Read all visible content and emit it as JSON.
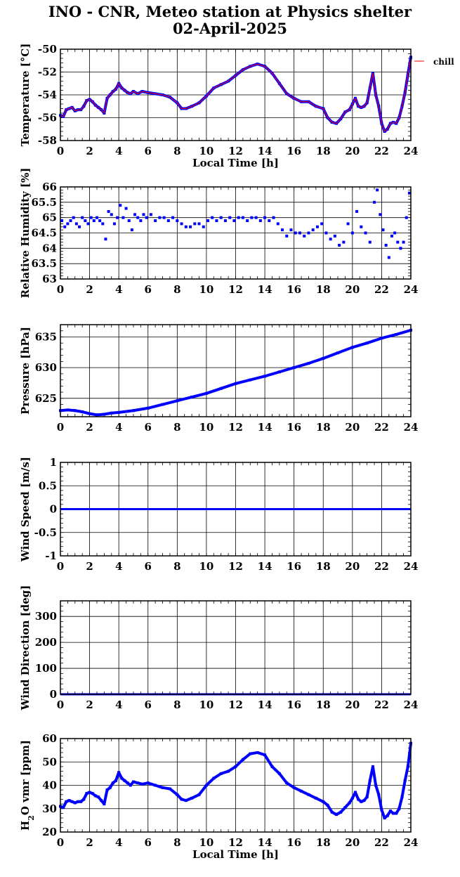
{
  "title_line1": "INO - CNR, Meteo station at Physics shelter",
  "title_line2": "02-April-2025",
  "colors": {
    "series": "#0000ff",
    "overlay": "#ff0000"
  },
  "chart_data": [
    {
      "type": "scatter",
      "ylabel": "Temperature [°C]",
      "xlabel": "Local Time [h]",
      "xlim": [
        0,
        24
      ],
      "xticks": [
        0,
        2,
        4,
        6,
        8,
        10,
        12,
        14,
        16,
        18,
        20,
        22,
        24
      ],
      "ylim": [
        -58,
        -50
      ],
      "yticks": [
        -58,
        -56,
        -54,
        -52,
        -50
      ],
      "ytick_labels": [
        "-58",
        "-56",
        "-54",
        "-52",
        "-50"
      ],
      "legend": {
        "label": "chill",
        "placement": "right"
      },
      "x": [
        0,
        0.2,
        0.4,
        0.6,
        0.8,
        1.0,
        1.2,
        1.4,
        1.6,
        1.8,
        2.0,
        2.2,
        2.4,
        2.6,
        2.8,
        3.0,
        3.2,
        3.4,
        3.6,
        3.8,
        4.0,
        4.2,
        4.4,
        4.6,
        4.8,
        5.0,
        5.3,
        5.6,
        6.0,
        6.5,
        7.0,
        7.5,
        8.0,
        8.3,
        8.6,
        9.0,
        9.5,
        10.0,
        10.5,
        11.0,
        11.5,
        12.0,
        12.5,
        13.0,
        13.5,
        14.0,
        14.5,
        15.0,
        15.5,
        16.0,
        16.5,
        17.0,
        17.5,
        18.0,
        18.3,
        18.6,
        18.9,
        19.2,
        19.5,
        19.8,
        20.0,
        20.2,
        20.4,
        20.6,
        20.8,
        21.0,
        21.2,
        21.4,
        21.6,
        21.8,
        22.0,
        22.2,
        22.4,
        22.6,
        22.8,
        23.0,
        23.2,
        23.4,
        23.6,
        23.8,
        24.0
      ],
      "y": [
        -55.8,
        -55.9,
        -55.3,
        -55.2,
        -55.1,
        -55.4,
        -55.3,
        -55.3,
        -55.0,
        -54.5,
        -54.4,
        -54.6,
        -54.9,
        -55.1,
        -55.3,
        -55.6,
        -54.3,
        -54.0,
        -53.7,
        -53.5,
        -53.0,
        -53.4,
        -53.6,
        -53.8,
        -53.9,
        -53.7,
        -53.9,
        -53.7,
        -53.8,
        -53.9,
        -54.0,
        -54.2,
        -54.7,
        -55.2,
        -55.2,
        -55.0,
        -54.7,
        -54.1,
        -53.4,
        -53.1,
        -52.8,
        -52.3,
        -51.8,
        -51.5,
        -51.3,
        -51.5,
        -52.1,
        -53.0,
        -53.9,
        -54.3,
        -54.6,
        -54.6,
        -55.0,
        -55.2,
        -56.0,
        -56.4,
        -56.5,
        -56.1,
        -55.5,
        -55.3,
        -54.8,
        -54.3,
        -55.0,
        -55.1,
        -55.0,
        -54.7,
        -53.4,
        -52.1,
        -54.0,
        -55.0,
        -56.5,
        -57.2,
        -57.0,
        -56.5,
        -56.4,
        -56.5,
        -56.0,
        -55.0,
        -53.8,
        -52.2,
        -50.7
      ]
    },
    {
      "type": "scatter",
      "ylabel": "Relative Humidity [%]",
      "xlim": [
        0,
        24
      ],
      "xticks": [
        0,
        2,
        4,
        6,
        8,
        10,
        12,
        14,
        16,
        18,
        20,
        22,
        24
      ],
      "ylim": [
        63,
        66
      ],
      "yticks": [
        63,
        63.5,
        64,
        64.5,
        65,
        65.5,
        66
      ],
      "ytick_labels": [
        "63",
        "63.5",
        "64",
        "64.5",
        "65",
        "65.5",
        "66"
      ],
      "x": [
        0.1,
        0.3,
        0.5,
        0.7,
        0.9,
        1.1,
        1.3,
        1.5,
        1.7,
        1.9,
        2.1,
        2.3,
        2.5,
        2.7,
        2.9,
        3.1,
        3.3,
        3.5,
        3.7,
        3.9,
        4.1,
        4.3,
        4.5,
        4.7,
        4.9,
        5.1,
        5.3,
        5.5,
        5.7,
        5.9,
        6.2,
        6.5,
        6.8,
        7.1,
        7.4,
        7.7,
        8.0,
        8.3,
        8.6,
        8.9,
        9.2,
        9.5,
        9.8,
        10.1,
        10.4,
        10.7,
        11.0,
        11.3,
        11.6,
        11.9,
        12.2,
        12.5,
        12.8,
        13.1,
        13.4,
        13.7,
        14.0,
        14.3,
        14.6,
        14.9,
        15.2,
        15.5,
        15.8,
        16.1,
        16.4,
        16.7,
        17.0,
        17.3,
        17.6,
        17.9,
        18.2,
        18.5,
        18.8,
        19.1,
        19.4,
        19.7,
        20.0,
        20.3,
        20.6,
        20.9,
        21.2,
        21.5,
        21.7,
        21.9,
        22.1,
        22.3,
        22.5,
        22.7,
        22.9,
        23.1,
        23.3,
        23.5,
        23.7,
        23.9
      ],
      "y": [
        64.9,
        64.7,
        64.8,
        64.9,
        65.0,
        64.8,
        64.7,
        65.0,
        64.9,
        64.8,
        65.0,
        64.9,
        65.0,
        64.9,
        64.8,
        64.3,
        65.2,
        65.1,
        64.8,
        65.0,
        65.4,
        65.0,
        65.3,
        64.9,
        64.6,
        65.1,
        65.0,
        64.9,
        65.1,
        65.0,
        65.1,
        64.9,
        65.0,
        65.0,
        64.9,
        65.0,
        64.9,
        64.8,
        64.7,
        64.7,
        64.8,
        64.8,
        64.7,
        64.9,
        65.0,
        64.9,
        65.0,
        64.9,
        65.0,
        64.9,
        65.0,
        65.0,
        64.9,
        65.0,
        65.0,
        64.9,
        65.0,
        64.9,
        65.0,
        64.8,
        64.6,
        64.4,
        64.6,
        64.5,
        64.5,
        64.4,
        64.5,
        64.6,
        64.7,
        64.8,
        64.5,
        64.3,
        64.4,
        64.1,
        64.2,
        64.8,
        64.5,
        65.2,
        64.7,
        64.5,
        64.2,
        65.5,
        65.9,
        65.1,
        64.6,
        64.1,
        63.7,
        64.4,
        64.5,
        64.2,
        64.0,
        64.2,
        65.0,
        65.8
      ]
    },
    {
      "type": "scatter",
      "ylabel": "Pressure [hPa]",
      "xlim": [
        0,
        24
      ],
      "xticks": [
        0,
        2,
        4,
        6,
        8,
        10,
        12,
        14,
        16,
        18,
        20,
        22,
        24
      ],
      "ylim": [
        622,
        637
      ],
      "yticks": [
        625,
        630,
        635
      ],
      "ytick_labels": [
        "625",
        "630",
        "635"
      ],
      "x": [
        0,
        0.5,
        1.0,
        1.5,
        2.0,
        2.5,
        3.0,
        3.5,
        4.0,
        5.0,
        6.0,
        7.0,
        8.0,
        9.0,
        10.0,
        11.0,
        12.0,
        13.0,
        14.0,
        15.0,
        16.0,
        17.0,
        18.0,
        19.0,
        20.0,
        21.0,
        22.0,
        23.0,
        24.0
      ],
      "y": [
        623.0,
        623.1,
        623.0,
        622.8,
        622.5,
        622.3,
        622.4,
        622.6,
        622.7,
        623.0,
        623.4,
        624.0,
        624.6,
        625.2,
        625.8,
        626.6,
        627.4,
        628.0,
        628.6,
        629.3,
        630.0,
        630.7,
        631.5,
        632.4,
        633.3,
        634.0,
        634.8,
        635.4,
        636.1
      ]
    },
    {
      "type": "line",
      "ylabel": "Wind Speed [m/s]",
      "xlim": [
        0,
        24
      ],
      "xticks": [
        0,
        2,
        4,
        6,
        8,
        10,
        12,
        14,
        16,
        18,
        20,
        22,
        24
      ],
      "ylim": [
        -1,
        1
      ],
      "yticks": [
        -1,
        -0.5,
        0,
        0.5,
        1
      ],
      "ytick_labels": [
        "-1",
        "-0.5",
        "0",
        "0.5",
        "1"
      ],
      "x": [
        0,
        24
      ],
      "y": [
        0,
        0
      ]
    },
    {
      "type": "line",
      "ylabel": "Wind Direction [deg]",
      "xlim": [
        0,
        24
      ],
      "xticks": [
        0,
        2,
        4,
        6,
        8,
        10,
        12,
        14,
        16,
        18,
        20,
        22,
        24
      ],
      "ylim": [
        0,
        360
      ],
      "yticks": [
        0,
        100,
        200,
        300
      ],
      "ytick_labels": [
        "0",
        "100",
        "200",
        "300"
      ],
      "x": [
        0,
        24
      ],
      "y": [
        0,
        0
      ]
    },
    {
      "type": "scatter",
      "ylabel_main": "H",
      "ylabel_sub": "2",
      "ylabel_rest": "O vmr [ppm]",
      "xlabel": "Local Time [h]",
      "xlim": [
        0,
        24
      ],
      "xticks": [
        0,
        2,
        4,
        6,
        8,
        10,
        12,
        14,
        16,
        18,
        20,
        22,
        24
      ],
      "ylim": [
        20,
        60
      ],
      "yticks": [
        20,
        30,
        40,
        50,
        60
      ],
      "ytick_labels": [
        "20",
        "30",
        "40",
        "50",
        "60"
      ],
      "x": [
        0,
        0.2,
        0.4,
        0.6,
        0.8,
        1.0,
        1.2,
        1.4,
        1.6,
        1.8,
        2.0,
        2.2,
        2.4,
        2.6,
        2.8,
        3.0,
        3.2,
        3.4,
        3.6,
        3.8,
        4.0,
        4.2,
        4.4,
        4.6,
        4.8,
        5.0,
        5.3,
        5.6,
        6.0,
        6.5,
        7.0,
        7.5,
        8.0,
        8.3,
        8.6,
        9.0,
        9.5,
        10.0,
        10.5,
        11.0,
        11.5,
        12.0,
        12.5,
        13.0,
        13.5,
        14.0,
        14.5,
        15.0,
        15.5,
        16.0,
        16.5,
        17.0,
        17.5,
        18.0,
        18.3,
        18.6,
        18.9,
        19.2,
        19.5,
        19.8,
        20.0,
        20.2,
        20.4,
        20.6,
        20.8,
        21.0,
        21.2,
        21.4,
        21.6,
        21.8,
        22.0,
        22.2,
        22.4,
        22.6,
        22.8,
        23.0,
        23.2,
        23.4,
        23.6,
        23.8,
        24.0
      ],
      "y": [
        31.0,
        30.5,
        33.0,
        33.5,
        33.0,
        32.5,
        33.0,
        33.0,
        34.0,
        36.5,
        37.0,
        36.5,
        35.5,
        35.0,
        33.5,
        32.0,
        38.0,
        39.0,
        41.0,
        42.0,
        45.5,
        43.0,
        42.0,
        41.0,
        40.0,
        41.5,
        41.0,
        40.5,
        41.0,
        40.0,
        39.0,
        38.5,
        36.0,
        34.0,
        33.5,
        34.5,
        36.0,
        40.0,
        43.0,
        45.0,
        46.0,
        48.0,
        51.0,
        53.5,
        54.0,
        53.0,
        48.0,
        45.0,
        41.0,
        39.0,
        37.5,
        36.0,
        34.5,
        33.0,
        31.5,
        28.5,
        27.5,
        28.5,
        30.5,
        32.5,
        34.5,
        37.0,
        34.0,
        33.0,
        33.5,
        35.0,
        42.0,
        48.0,
        40.0,
        36.0,
        29.5,
        26.0,
        27.0,
        29.0,
        28.0,
        28.0,
        30.0,
        35.0,
        42.0,
        48.0,
        58.0
      ]
    }
  ]
}
